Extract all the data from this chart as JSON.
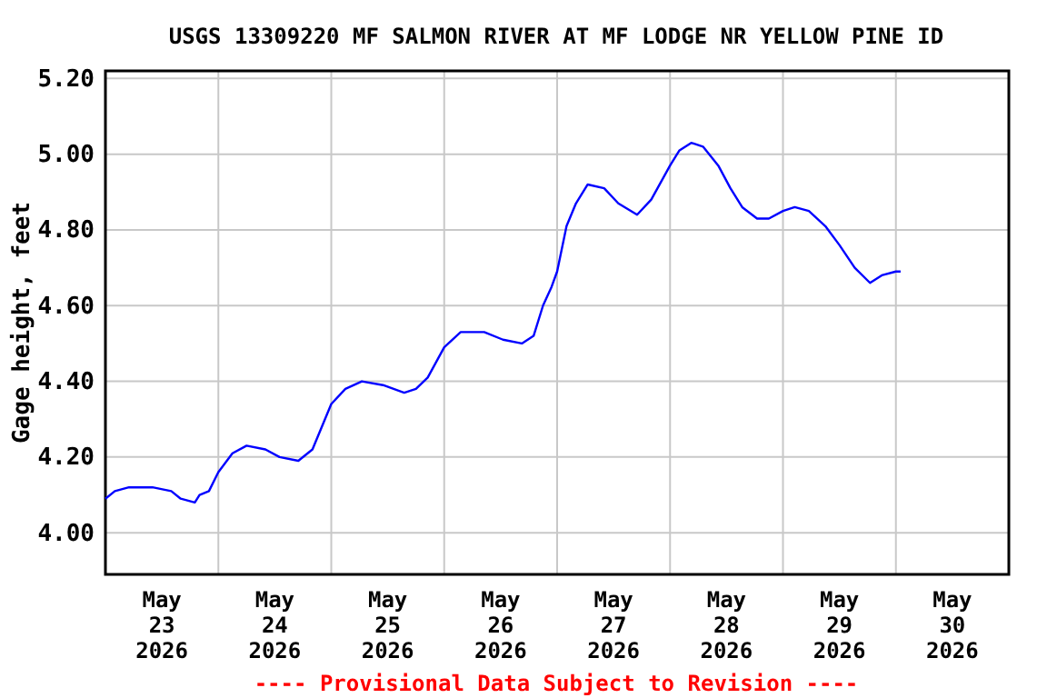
{
  "chart_data": {
    "type": "line",
    "title": "USGS 13309220 MF SALMON RIVER AT MF LODGE NR YELLOW PINE ID",
    "ylabel": "Gage height, feet",
    "annotations": [
      "---- Provisional Data Subject to Revision ----"
    ],
    "xlim": [
      "2026-05-23T00:00",
      "2026-05-31T00:00"
    ],
    "xticks": [
      {
        "value": "2026-05-23T12:00",
        "label": "May 23 2026"
      },
      {
        "value": "2026-05-24T00:00",
        "label": null
      },
      {
        "value": "2026-05-24T12:00",
        "label": "May 24 2026"
      },
      {
        "value": "2026-05-25T00:00",
        "label": null
      },
      {
        "value": "2026-05-25T12:00",
        "label": "May 25 2026"
      },
      {
        "value": "2026-05-26T00:00",
        "label": null
      },
      {
        "value": "2026-05-26T12:00",
        "label": "May 26 2026"
      },
      {
        "value": "2026-05-27T00:00",
        "label": null
      },
      {
        "value": "2026-05-27T12:00",
        "label": "May 27 2026"
      },
      {
        "value": "2026-05-28T00:00",
        "label": null
      },
      {
        "value": "2026-05-28T12:00",
        "label": "May 28 2026"
      },
      {
        "value": "2026-05-29T00:00",
        "label": null
      },
      {
        "value": "2026-05-29T12:00",
        "label": "May 29 2026"
      },
      {
        "value": "2026-05-30T00:00",
        "label": null
      },
      {
        "value": "2026-05-30T12:00",
        "label": "May 30 2026"
      }
    ],
    "ylim": [
      3.89,
      5.22
    ],
    "yticks": [
      {
        "value": 4,
        "label": "4.00"
      },
      {
        "value": 4.2,
        "label": "4.20"
      },
      {
        "value": 4.4,
        "label": "4.40"
      },
      {
        "value": 4.6,
        "label": "4.60"
      },
      {
        "value": 4.8,
        "label": "4.80"
      },
      {
        "value": 5,
        "label": "5.00"
      },
      {
        "value": 5.2,
        "label": "5.20"
      }
    ],
    "grid": true,
    "marker": "none",
    "line_style": "solid",
    "x": [
      "2026-05-23T00:00",
      "2026-05-23T02:00",
      "2026-05-23T05:00",
      "2026-05-23T10:00",
      "2026-05-23T14:00",
      "2026-05-23T16:00",
      "2026-05-23T19:00",
      "2026-05-23T20:00",
      "2026-05-23T22:00",
      "2026-05-24T00:00",
      "2026-05-24T03:00",
      "2026-05-24T06:00",
      "2026-05-24T10:00",
      "2026-05-24T13:00",
      "2026-05-24T17:00",
      "2026-05-24T20:00",
      "2026-05-24T22:00",
      "2026-05-25T00:00",
      "2026-05-25T03:00",
      "2026-05-25T06:30",
      "2026-05-25T11:00",
      "2026-05-25T15:30",
      "2026-05-25T18:00",
      "2026-05-25T20:30",
      "2026-05-26T00:00",
      "2026-05-26T03:30",
      "2026-05-26T08:30",
      "2026-05-26T12:30",
      "2026-05-26T16:30",
      "2026-05-26T19:00",
      "2026-05-26T21:00",
      "2026-05-26T22:50",
      "2026-05-27T00:00",
      "2026-05-27T02:00",
      "2026-05-27T04:00",
      "2026-05-27T06:30",
      "2026-05-27T10:00",
      "2026-05-27T13:00",
      "2026-05-27T17:00",
      "2026-05-27T20:00",
      "2026-05-27T22:40",
      "2026-05-28T00:00",
      "2026-05-28T02:00",
      "2026-05-28T04:30",
      "2026-05-28T07:00",
      "2026-05-28T10:15",
      "2026-05-28T12:50",
      "2026-05-28T15:20",
      "2026-05-28T18:30",
      "2026-05-28T21:00",
      "2026-05-29T00:00",
      "2026-05-29T02:30",
      "2026-05-29T05:30",
      "2026-05-29T09:00",
      "2026-05-29T12:00",
      "2026-05-29T15:15",
      "2026-05-29T18:30",
      "2026-05-29T21:00",
      "2026-05-30T00:00",
      "2026-05-30T01:00"
    ],
    "series": [
      {
        "color": "#0000ff",
        "values": [
          4.09,
          4.11,
          4.12,
          4.12,
          4.11,
          4.09,
          4.08,
          4.1,
          4.11,
          4.16,
          4.21,
          4.23,
          4.22,
          4.2,
          4.19,
          4.22,
          4.28,
          4.34,
          4.38,
          4.4,
          4.39,
          4.37,
          4.38,
          4.41,
          4.49,
          4.53,
          4.53,
          4.51,
          4.5,
          4.52,
          4.6,
          4.65,
          4.69,
          4.81,
          4.87,
          4.92,
          4.91,
          4.87,
          4.84,
          4.88,
          4.94,
          4.97,
          5.01,
          5.03,
          5.02,
          4.97,
          4.91,
          4.86,
          4.83,
          4.83,
          4.85,
          4.86,
          4.85,
          4.81,
          4.76,
          4.7,
          4.66,
          4.68,
          4.69,
          4.69
        ]
      }
    ]
  }
}
